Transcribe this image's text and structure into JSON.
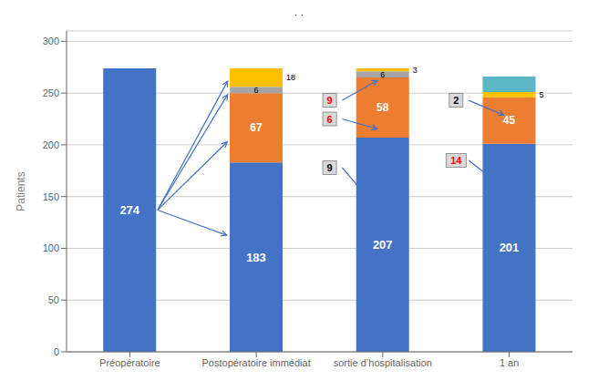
{
  "chart_data": {
    "type": "bar",
    "stacked": true,
    "title": "·         ·",
    "categories": [
      "Préopératoire",
      "Postopératoire immédiat",
      "sortie d’hospitalisation",
      "1 an"
    ],
    "series": [
      {
        "color": "#4472C4",
        "values": [
          274,
          183,
          207,
          201
        ],
        "data_labels": true
      },
      {
        "color": "#ED7D31",
        "values": [
          0,
          67,
          58,
          45
        ],
        "data_labels": true
      },
      {
        "color": "#A5A5A5",
        "values": [
          0,
          6,
          6,
          0
        ],
        "data_labels": true
      },
      {
        "color": "#FFC000",
        "values": [
          0,
          18,
          3,
          5
        ],
        "data_labels": true
      },
      {
        "color": "#5BB7C5",
        "values": [
          0,
          0,
          0,
          15
        ],
        "data_labels": false
      }
    ],
    "ylabel": "Patients",
    "ylim": [
      0,
      310
    ],
    "yticks": [
      0,
      50,
      100,
      150,
      200,
      250,
      300
    ],
    "grid": true,
    "annotations": [
      {
        "x": 1.58,
        "y": 178,
        "label": "9",
        "color": "black"
      },
      {
        "x": 1.58,
        "y": 225,
        "label": "6",
        "color": "red"
      },
      {
        "x": 1.58,
        "y": 243,
        "label": "9",
        "color": "red"
      },
      {
        "x": 2.58,
        "y": 185,
        "label": "14",
        "color": "red"
      },
      {
        "x": 2.58,
        "y": 243,
        "label": "2",
        "color": "black"
      }
    ],
    "arrows": [
      [
        0.22,
        137,
        0.78,
        112
      ],
      [
        0.22,
        137,
        0.78,
        204
      ],
      [
        0.22,
        137,
        0.78,
        250
      ],
      [
        0.22,
        137,
        0.78,
        263
      ],
      [
        1.68,
        178,
        1.97,
        136
      ],
      [
        1.68,
        225,
        1.97,
        215
      ],
      [
        1.68,
        243,
        1.97,
        263
      ],
      [
        2.68,
        243,
        2.97,
        228
      ],
      [
        2.68,
        185,
        2.97,
        157
      ]
    ]
  }
}
